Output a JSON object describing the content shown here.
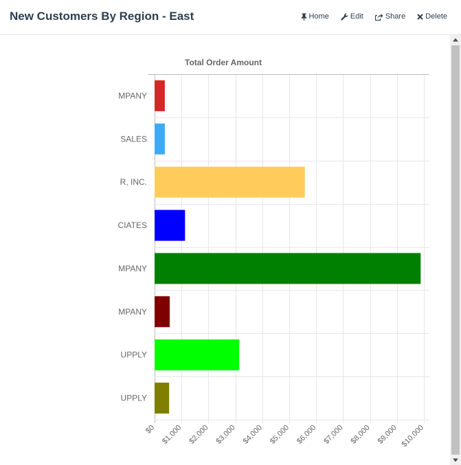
{
  "header": {
    "title": "New Customers By Region - East",
    "actions": {
      "home": {
        "label": "Home",
        "icon": "pin-icon"
      },
      "edit": {
        "label": "Edit",
        "icon": "wrench-icon"
      },
      "share": {
        "label": "Share",
        "icon": "share-icon"
      },
      "delete": {
        "label": "Delete",
        "icon": "close-icon"
      }
    }
  },
  "chart_data": {
    "type": "bar",
    "orientation": "horizontal",
    "title": "Total Order Amount",
    "xlabel": "",
    "ylabel": "",
    "xlim": [
      0,
      10000
    ],
    "x_ticks": [
      0,
      1000,
      2000,
      3000,
      4000,
      5000,
      6000,
      7000,
      8000,
      9000,
      10000
    ],
    "x_tick_labels": [
      "$0",
      "$1,000",
      "$2,000",
      "$3,000",
      "$4,000",
      "$5,000",
      "$6,000",
      "$7,000",
      "$8,000",
      "$9,000",
      "$10,000"
    ],
    "categories": [
      "MPANY",
      "SALES",
      "R, INC.",
      "CIATES",
      "MPANY",
      "MPANY",
      "UPPLY",
      "UPPLY"
    ],
    "values": [
      380,
      380,
      5580,
      1130,
      9880,
      560,
      3140,
      540
    ],
    "colors": [
      "#d62728",
      "#3fa9f5",
      "#ffcc5c",
      "#0000ff",
      "#008000",
      "#800000",
      "#00ff00",
      "#808000"
    ],
    "grid": true,
    "legend": "none"
  }
}
